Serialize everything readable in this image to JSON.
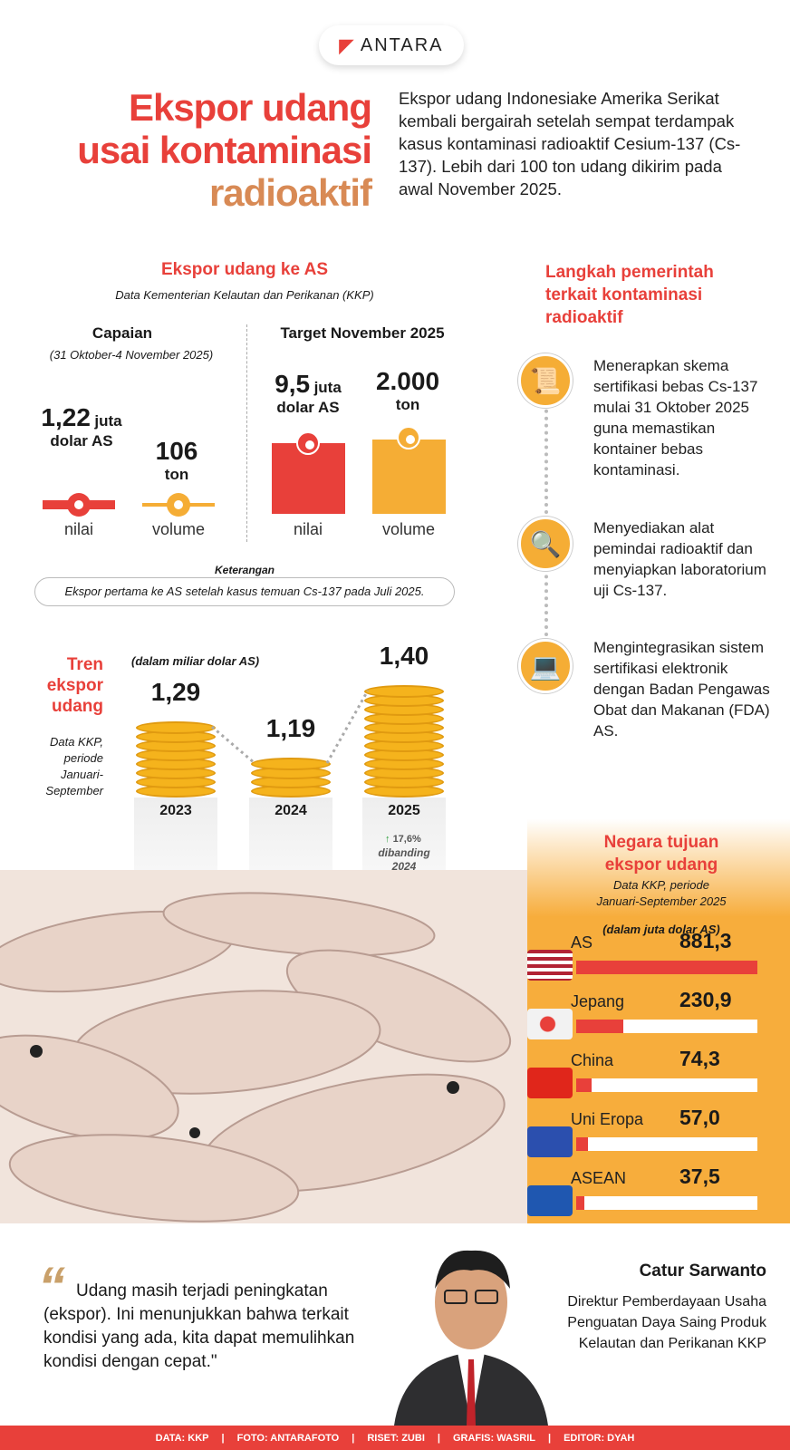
{
  "logo": {
    "text": "ANTARA"
  },
  "title": {
    "line1": "Ekspor udang",
    "line2": "usai kontaminasi",
    "line3": "radioaktif"
  },
  "intro": "Ekspor udang Indonesiake Amerika Serikat kembali bergairah setelah sempat terdampak kasus kontaminasi radioaktif Cesium-137 (Cs-137). Lebih dari 100 ton udang dikirim pada awal November 2025.",
  "export_us": {
    "heading": "Ekspor udang ke AS",
    "source": "Data Kementerian Kelautan dan Perikanan (KKP)",
    "achievement": {
      "heading": "Capaian",
      "period": "(31 Oktober-4 November 2025)",
      "value_num": "1,22",
      "value_unit1": "juta",
      "value_unit2": "dolar AS",
      "volume_num": "106",
      "volume_unit": "ton",
      "label_value": "nilai",
      "label_volume": "volume"
    },
    "target": {
      "heading": "Target November 2025",
      "value_num": "9,5",
      "value_unit1": "juta",
      "value_unit2": "dolar AS",
      "volume_num": "2.000",
      "volume_unit": "ton",
      "label_value": "nilai",
      "label_volume": "volume"
    },
    "note_title": "Keterangan",
    "note": "Ekspor pertama ke AS setelah kasus temuan Cs-137 pada Juli 2025."
  },
  "trend": {
    "heading1": "Tren",
    "heading2": "ekspor",
    "heading3": "udang",
    "source1": "Data KKP,",
    "source2": "periode",
    "source3": "Januari-",
    "source4": "September",
    "unit": "(dalam miliar dolar AS)",
    "growth": "17,6%",
    "growth_note1": "dibanding",
    "growth_note2": "2024"
  },
  "steps": {
    "heading1": "Langkah pemerintah",
    "heading2": "terkait kontaminasi",
    "heading3": "radioaktif",
    "items": [
      {
        "icon": "certificate-icon",
        "text": "Menerapkan skema sertifikasi bebas Cs-137 mulai 31 Oktober 2025 guna memastikan kontainer bebas kontaminasi."
      },
      {
        "icon": "magnifier-icon",
        "text": "Menyediakan alat pemindai radioaktif dan menyiapkan laboratorium uji Cs-137."
      },
      {
        "icon": "laptop-certificate-icon",
        "text": "Mengintegrasikan sistem sertifikasi elektronik dengan Badan Pengawas Obat dan Makanan (FDA) AS."
      }
    ]
  },
  "destinations": {
    "heading1": "Negara tujuan",
    "heading2": "ekspor udang",
    "source1": "Data KKP, periode",
    "source2": "Januari-September 2025",
    "unit": "(dalam juta dolar AS)"
  },
  "quote": {
    "text": "Udang masih terjadi peningkatan (ekspor). Ini menunjukkan bahwa terkait kondisi yang ada, kita dapat memulihkan kondisi dengan cepat.\"",
    "name": "Catur Sarwanto",
    "role": "Direktur Pemberdayaan Usaha Penguatan Daya Saing Produk Kelautan dan Perikanan KKP"
  },
  "footer": {
    "items": [
      "DATA: KKP",
      "FOTO: ANTARAFOTO",
      "RISET: ZUBI",
      "GRAFIS: WASRIL",
      "EDITOR: DYAH"
    ],
    "sep": "|"
  },
  "colors": {
    "red": "#e8403a",
    "orange": "#f7ad3c",
    "gold": "#f5b31c",
    "brown": "#d88a55"
  },
  "chart_data": [
    {
      "type": "bar",
      "title": "Tren ekspor udang",
      "ylabel": "(dalam miliar dolar AS)",
      "categories": [
        "2023",
        "2024",
        "2025"
      ],
      "values": [
        1.29,
        1.19,
        1.4
      ],
      "labels": [
        "1,29",
        "1,19",
        "1,40"
      ]
    },
    {
      "type": "bar",
      "orientation": "horizontal",
      "title": "Negara tujuan ekspor udang",
      "ylabel": "(dalam juta dolar AS)",
      "categories": [
        "AS",
        "Jepang",
        "China",
        "Uni Eropa",
        "ASEAN"
      ],
      "values": [
        881.3,
        230.9,
        74.3,
        57.0,
        37.5
      ],
      "labels": [
        "881,3",
        "230,9",
        "74,3",
        "57,0",
        "37,5"
      ],
      "flags": [
        "us-flag-icon",
        "japan-flag-icon",
        "china-flag-icon",
        "eu-flag-icon",
        "asean-flag-icon"
      ]
    }
  ]
}
